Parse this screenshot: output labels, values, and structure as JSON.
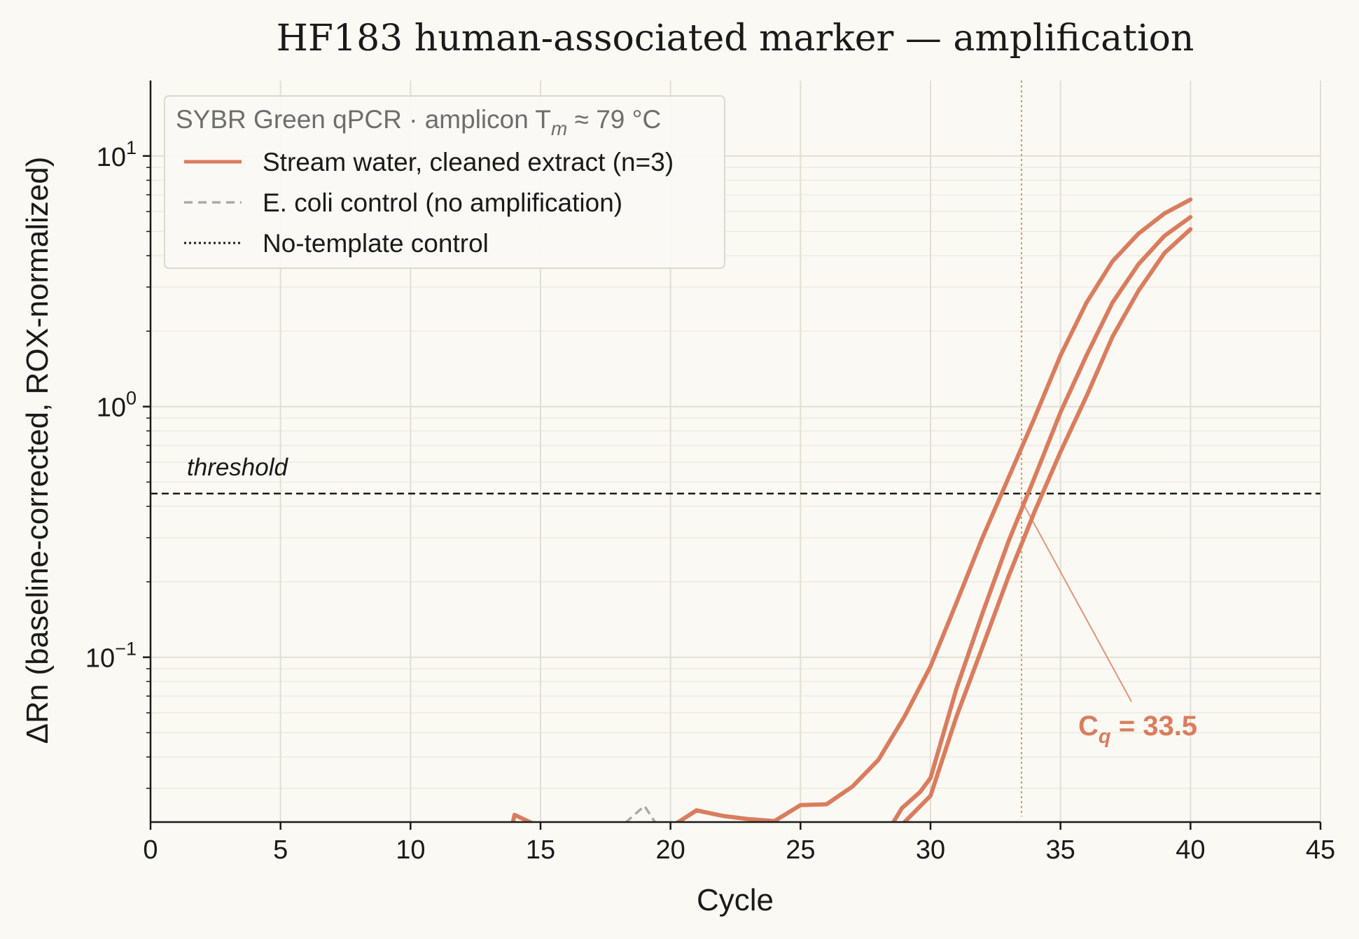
{
  "chart_data": {
    "type": "line",
    "title": "HF183 human-associated marker — amplification",
    "xlabel": "Cycle",
    "ylabel": "ΔRn (baseline-corrected, ROX-normalized)",
    "xlim": [
      0,
      45
    ],
    "ylim": [
      0.022,
      20
    ],
    "yscale": "log",
    "grid": true,
    "legend_position": "upper-left",
    "legend_title": {
      "prefix": "SYBR Green qPCR  ·  amplicon T",
      "subscript": "m",
      "suffix": " ≈ 79 °C"
    },
    "x_ticks": [
      0,
      5,
      10,
      15,
      20,
      25,
      30,
      35,
      40,
      45
    ],
    "x_tick_labels": [
      "0",
      "5",
      "10",
      "15",
      "20",
      "25",
      "30",
      "35",
      "40",
      "45"
    ],
    "y_ticks": [
      {
        "value": 0.1,
        "base": "10",
        "exp": "−1"
      },
      {
        "value": 1,
        "base": "10",
        "exp": "0"
      },
      {
        "value": 10,
        "base": "10",
        "exp": "1"
      }
    ],
    "threshold": {
      "value": 0.45,
      "label": "threshold"
    },
    "cq": {
      "value": 33.5,
      "prefix": "C",
      "subscript": "q",
      "suffix": " = 33.5"
    },
    "colors": {
      "sample": "#d97d5e",
      "ecoli": "#aaaaaa",
      "ntc": "#1a1a1a"
    },
    "series": [
      {
        "name": "Stream water, cleaned extract (n=3)",
        "group": "sample",
        "x": [
          13.8,
          14,
          15,
          16,
          17,
          18,
          19,
          20,
          21,
          22,
          23,
          24,
          25,
          26,
          27,
          28,
          29,
          30,
          31,
          32,
          33,
          34,
          35,
          36,
          37,
          38,
          39,
          40
        ],
        "values": [
          0.019,
          0.0235,
          0.021,
          0.018,
          0.019,
          0.02,
          0.021,
          0.021,
          0.0245,
          0.0233,
          0.0226,
          0.0222,
          0.0257,
          0.0259,
          0.0305,
          0.039,
          0.058,
          0.092,
          0.165,
          0.3,
          0.52,
          0.9,
          1.6,
          2.6,
          3.8,
          4.9,
          5.9,
          6.7
        ]
      },
      {
        "name": "",
        "group": "sample",
        "x": [
          28.2,
          28.9,
          29.6,
          30,
          31,
          32,
          33,
          34,
          35,
          36,
          37,
          38,
          39,
          40
        ],
        "values": [
          0.019,
          0.025,
          0.029,
          0.033,
          0.075,
          0.15,
          0.29,
          0.52,
          0.95,
          1.6,
          2.6,
          3.7,
          4.8,
          5.7
        ]
      },
      {
        "name": "",
        "group": "sample",
        "x": [
          28.5,
          29,
          30,
          31,
          32,
          33,
          34,
          35,
          36,
          37,
          38,
          39,
          40
        ],
        "values": [
          0.019,
          0.022,
          0.028,
          0.058,
          0.11,
          0.21,
          0.38,
          0.66,
          1.1,
          1.9,
          2.9,
          4.1,
          5.1
        ]
      },
      {
        "name": "E. coli control (no amplification)",
        "group": "ecoli",
        "x": [
          16.5,
          17,
          18,
          19,
          19.8
        ],
        "values": [
          0.019,
          0.0213,
          0.0207,
          0.0255,
          0.019
        ]
      },
      {
        "name": "No-template control",
        "group": "ntc",
        "x": [],
        "values": []
      }
    ]
  }
}
